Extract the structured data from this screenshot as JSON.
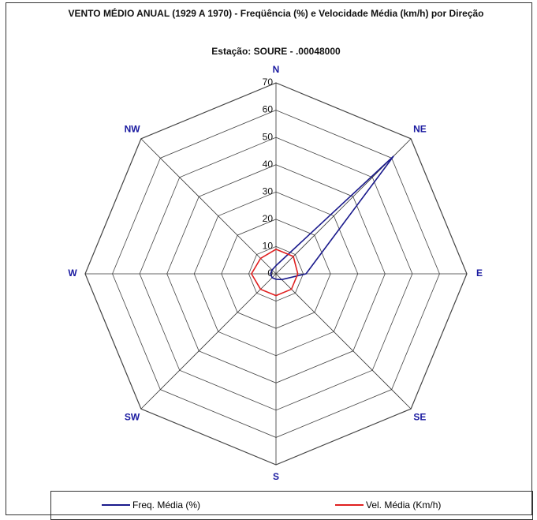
{
  "chart_data": {
    "type": "radar",
    "title": "VENTO MÉDIO ANUAL (1929 A 1970) - Freqüência (%) e Velocidade Média (km/h) por Direção",
    "subtitle": "Estação: SOURE  -  .00048000",
    "categories": [
      "N",
      "NE",
      "E",
      "SE",
      "S",
      "SW",
      "W",
      "NW"
    ],
    "series": [
      {
        "name": "Freq. Média (%)",
        "color": "#1a1a8c",
        "values": [
          3,
          61,
          11,
          3,
          2,
          2,
          2,
          2
        ]
      },
      {
        "name": "Vel. Média (Km/h)",
        "color": "#e02020",
        "values": [
          9,
          9,
          8,
          8,
          8,
          8,
          9,
          8
        ]
      }
    ],
    "ylim": [
      0,
      70
    ],
    "yticks": [
      0,
      10,
      20,
      30,
      40,
      50,
      60,
      70
    ],
    "grid": true
  }
}
